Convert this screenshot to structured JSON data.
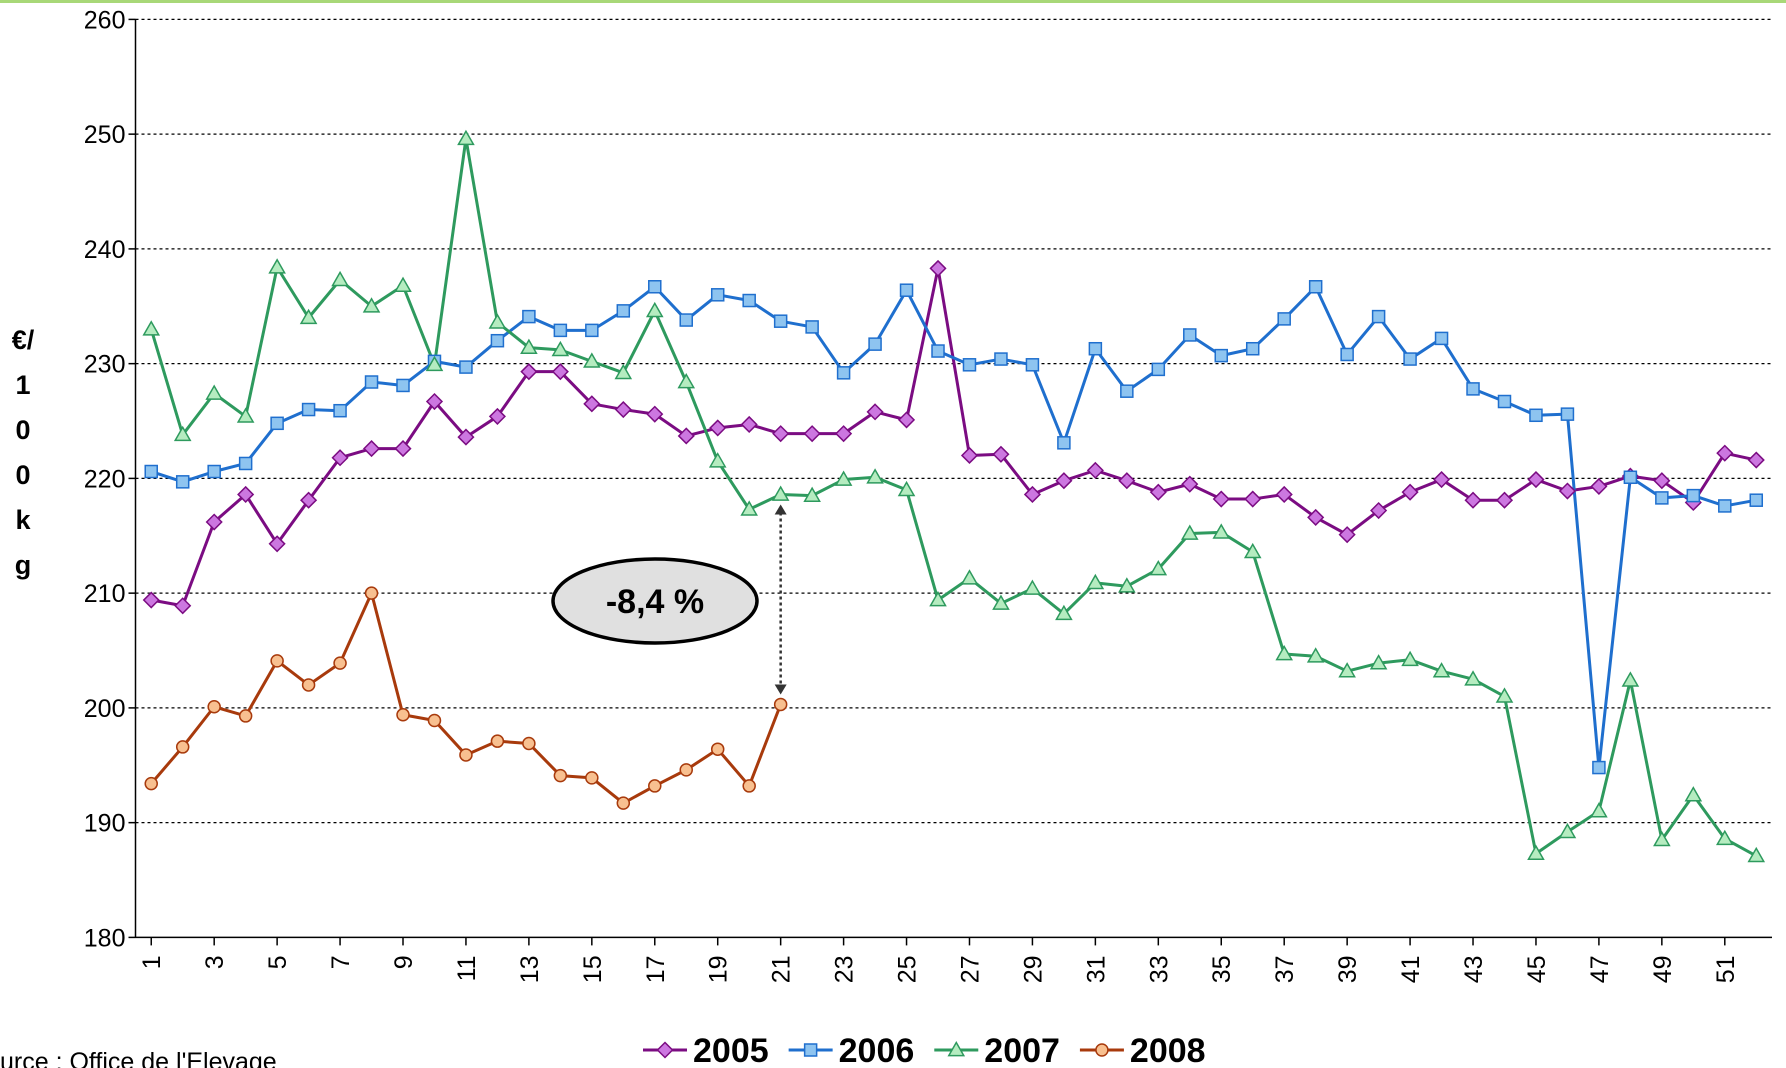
{
  "chart_data": {
    "type": "line",
    "y_label": "€/100kg",
    "source": "urce : Office de l'Elevage",
    "annotation": "-8,4 %",
    "x": [
      1,
      2,
      3,
      4,
      5,
      6,
      7,
      8,
      9,
      10,
      11,
      12,
      13,
      14,
      15,
      16,
      17,
      18,
      19,
      20,
      21,
      22,
      23,
      24,
      25,
      26,
      27,
      28,
      29,
      30,
      31,
      32,
      33,
      34,
      35,
      36,
      37,
      38,
      39,
      40,
      41,
      42,
      43,
      44,
      45,
      46,
      47,
      48,
      49,
      50,
      51,
      52
    ],
    "xlim": [
      0.5,
      52.5
    ],
    "xticks": [
      1,
      3,
      5,
      7,
      9,
      11,
      13,
      15,
      17,
      19,
      21,
      23,
      25,
      27,
      29,
      31,
      33,
      35,
      37,
      39,
      41,
      43,
      45,
      47,
      49,
      51
    ],
    "ylim": [
      180,
      260
    ],
    "yticks": [
      180,
      190,
      200,
      210,
      220,
      230,
      240,
      250,
      260
    ],
    "grid": true,
    "legend": "bottom",
    "series": [
      {
        "name": "2005",
        "color": "#7b0c82",
        "marker_color": "#cc77e0",
        "marker": "diamond",
        "values": [
          209.4,
          208.9,
          216.2,
          218.6,
          214.3,
          218.1,
          221.8,
          222.6,
          222.6,
          226.7,
          223.6,
          225.4,
          229.3,
          229.3,
          226.5,
          226.0,
          225.6,
          223.7,
          224.4,
          224.7,
          223.9,
          223.9,
          223.9,
          225.8,
          225.1,
          238.3,
          222.0,
          222.1,
          218.6,
          219.8,
          220.7,
          219.8,
          218.8,
          219.5,
          218.2,
          218.2,
          218.6,
          216.6,
          215.1,
          217.2,
          218.8,
          219.9,
          218.1,
          218.1,
          219.9,
          218.9,
          219.3,
          220.2,
          219.8,
          217.9,
          222.2,
          221.6
        ]
      },
      {
        "name": "2006",
        "color": "#1f6fce",
        "marker_color": "#8ec4f0",
        "marker": "square",
        "values": [
          220.6,
          219.7,
          220.6,
          221.3,
          224.8,
          226.0,
          225.9,
          228.4,
          228.1,
          230.2,
          229.7,
          232.0,
          234.1,
          232.9,
          232.9,
          234.6,
          236.7,
          233.8,
          236.0,
          235.5,
          233.7,
          233.2,
          229.2,
          231.7,
          236.4,
          231.1,
          229.9,
          230.4,
          229.9,
          223.1,
          231.3,
          227.6,
          229.5,
          232.5,
          230.7,
          231.3,
          233.9,
          236.7,
          230.8,
          234.1,
          230.4,
          232.2,
          227.8,
          226.7,
          225.5,
          225.6,
          194.8,
          220.1,
          218.3,
          218.5,
          217.6,
          218.1
        ]
      },
      {
        "name": "2007",
        "color": "#2e9a5e",
        "marker_color": "#b5ecc0",
        "marker": "triangle",
        "values": [
          233.0,
          223.8,
          227.4,
          225.4,
          238.4,
          234.0,
          237.3,
          235.0,
          236.8,
          229.9,
          249.6,
          233.6,
          231.4,
          231.2,
          230.2,
          229.2,
          234.6,
          228.4,
          221.5,
          217.3,
          218.6,
          218.5,
          219.9,
          220.1,
          219.0,
          209.4,
          211.3,
          209.1,
          210.4,
          208.2,
          210.9,
          210.6,
          212.1,
          215.2,
          215.3,
          213.6,
          204.7,
          204.5,
          203.2,
          203.9,
          204.2,
          203.2,
          202.5,
          201.0,
          187.3,
          189.2,
          191.0,
          202.4,
          188.5,
          192.4,
          188.6,
          187.1
        ]
      },
      {
        "name": "2008",
        "color": "#a83a0c",
        "marker_color": "#f8c090",
        "marker": "circle",
        "values": [
          193.4,
          196.6,
          200.1,
          199.3,
          204.1,
          202.0,
          203.9,
          210.0,
          199.4,
          198.9,
          195.9,
          197.1,
          196.9,
          194.1,
          193.9,
          191.7,
          193.2,
          194.6,
          196.4,
          193.2,
          200.3,
          null,
          null,
          null,
          null,
          null,
          null,
          null,
          null,
          null,
          null,
          null,
          null,
          null,
          null,
          null,
          null,
          null,
          null,
          null,
          null,
          null,
          null,
          null,
          null,
          null,
          null,
          null,
          null,
          null,
          null,
          null
        ]
      }
    ]
  }
}
